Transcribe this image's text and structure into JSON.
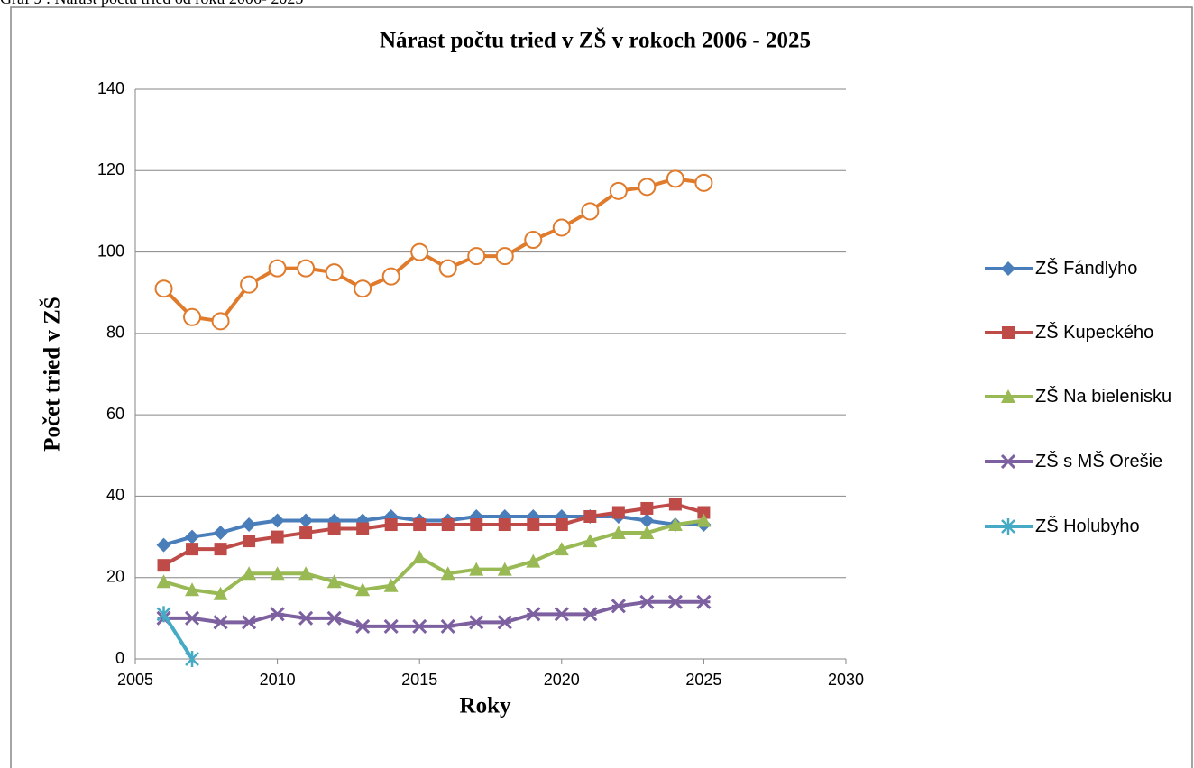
{
  "caption": "Graf 9 : Nárast počtu tried od roku 2006- 2025",
  "chart_data": {
    "type": "line",
    "title": "Nárast počtu tried  v ZŠ v rokoch 2006 - 2025",
    "x_label": "Roky",
    "y_label": "Počet tried v ZŠ",
    "x": [
      2006,
      2007,
      2008,
      2009,
      2010,
      2011,
      2012,
      2013,
      2014,
      2015,
      2016,
      2017,
      2018,
      2019,
      2020,
      2021,
      2022,
      2023,
      2024,
      2025
    ],
    "series": [
      {
        "color": "#e07b2c",
        "marker": "circle",
        "values": [
          91,
          84,
          83,
          92,
          96,
          96,
          95,
          91,
          94,
          100,
          96,
          99,
          99,
          103,
          106,
          110,
          115,
          116,
          118,
          117
        ]
      },
      {
        "name": "ZŠ Fándlyho",
        "color": "#4a7ebb",
        "marker": "diamond",
        "values": [
          28,
          30,
          31,
          33,
          34,
          34,
          34,
          34,
          35,
          34,
          34,
          35,
          35,
          35,
          35,
          35,
          35,
          34,
          33,
          33
        ]
      },
      {
        "name": "ZŠ Kupeckého",
        "color": "#be4b48",
        "marker": "square",
        "values": [
          23,
          27,
          27,
          29,
          30,
          31,
          32,
          32,
          33,
          33,
          33,
          33,
          33,
          33,
          33,
          35,
          36,
          37,
          38,
          36
        ]
      },
      {
        "name": "ZŠ Na bielenisku",
        "color": "#98b954",
        "marker": "triangle",
        "values": [
          19,
          17,
          16,
          21,
          21,
          21,
          19,
          17,
          18,
          25,
          21,
          22,
          22,
          24,
          27,
          29,
          31,
          31,
          33,
          34
        ]
      },
      {
        "name": "ZŠ s MŠ Orešie",
        "color": "#7d60a0",
        "marker": "star",
        "values": [
          10,
          10,
          9,
          9,
          11,
          10,
          10,
          8,
          8,
          8,
          8,
          9,
          9,
          11,
          11,
          11,
          13,
          14,
          14,
          14
        ]
      },
      {
        "name": "ZŠ Holubyho",
        "color": "#46aac5",
        "marker": "asterisk",
        "values": [
          11,
          0,
          null,
          null,
          null,
          null,
          null,
          null,
          null,
          null,
          null,
          null,
          null,
          null,
          null,
          null,
          null,
          null,
          null,
          null
        ]
      }
    ],
    "xlim": [
      2005,
      2030
    ],
    "xticks": [
      2005,
      2010,
      2015,
      2020,
      2025,
      2030
    ],
    "ylim": [
      0,
      140
    ],
    "yticks": [
      0,
      20,
      40,
      60,
      80,
      100,
      120,
      140
    ],
    "grid": true,
    "legend": "right"
  }
}
